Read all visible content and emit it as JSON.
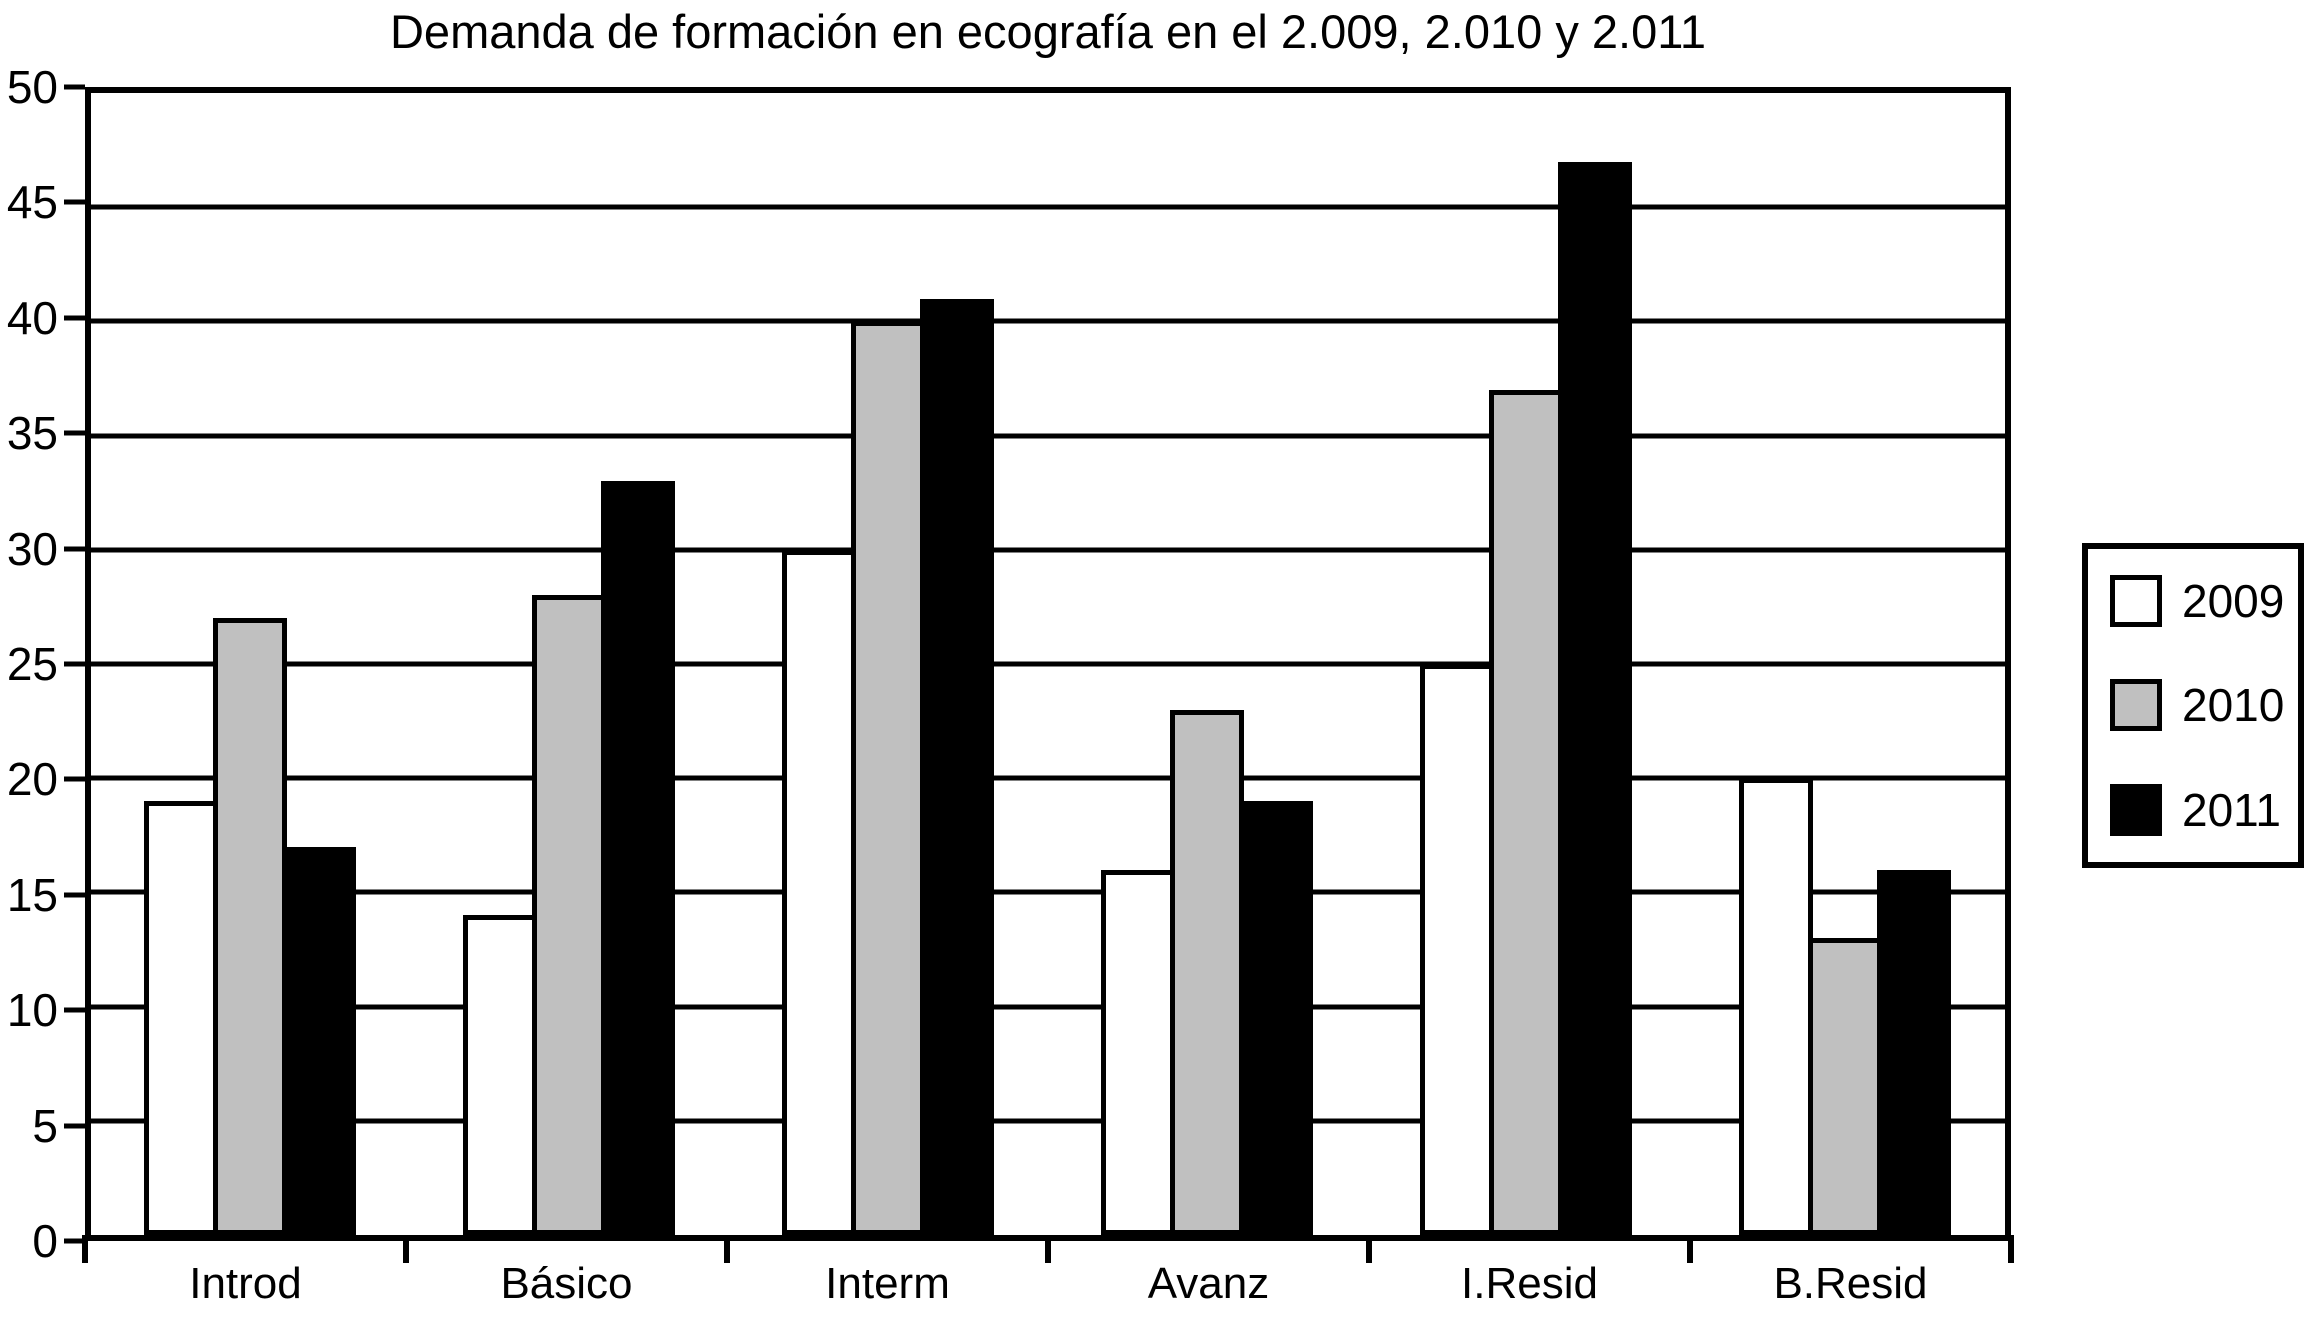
{
  "title": "Demanda de formación en ecografía en el 2.009, 2.010 y 2.011",
  "colors": {
    "background": "#ffffff",
    "axis": "#000000",
    "grid": "#000000",
    "series_2009": "#ffffff",
    "series_2010": "#c0c0c0",
    "series_2011": "#000000"
  },
  "chart_data": {
    "type": "bar",
    "title": "Demanda de formación en ecografía en el 2.009, 2.010 y 2.011",
    "categories": [
      "Introd",
      "Básico",
      "Interm",
      "Avanz",
      "I.Resid",
      "B.Resid"
    ],
    "series": [
      {
        "name": "2009",
        "color": "#ffffff",
        "values": [
          19,
          14,
          30,
          16,
          25,
          20
        ]
      },
      {
        "name": "2010",
        "color": "#c0c0c0",
        "values": [
          27,
          28,
          40,
          23,
          37,
          13
        ]
      },
      {
        "name": "2011",
        "color": "#000000",
        "values": [
          17,
          33,
          41,
          19,
          47,
          16
        ]
      }
    ],
    "xlabel": "",
    "ylabel": "",
    "ylim": [
      0,
      50
    ],
    "y_ticks": [
      0,
      5,
      10,
      15,
      20,
      25,
      30,
      35,
      40,
      45,
      50
    ],
    "grid": true,
    "legend_position": "right",
    "legend_labels": [
      "2009",
      "2010",
      "2011"
    ]
  }
}
